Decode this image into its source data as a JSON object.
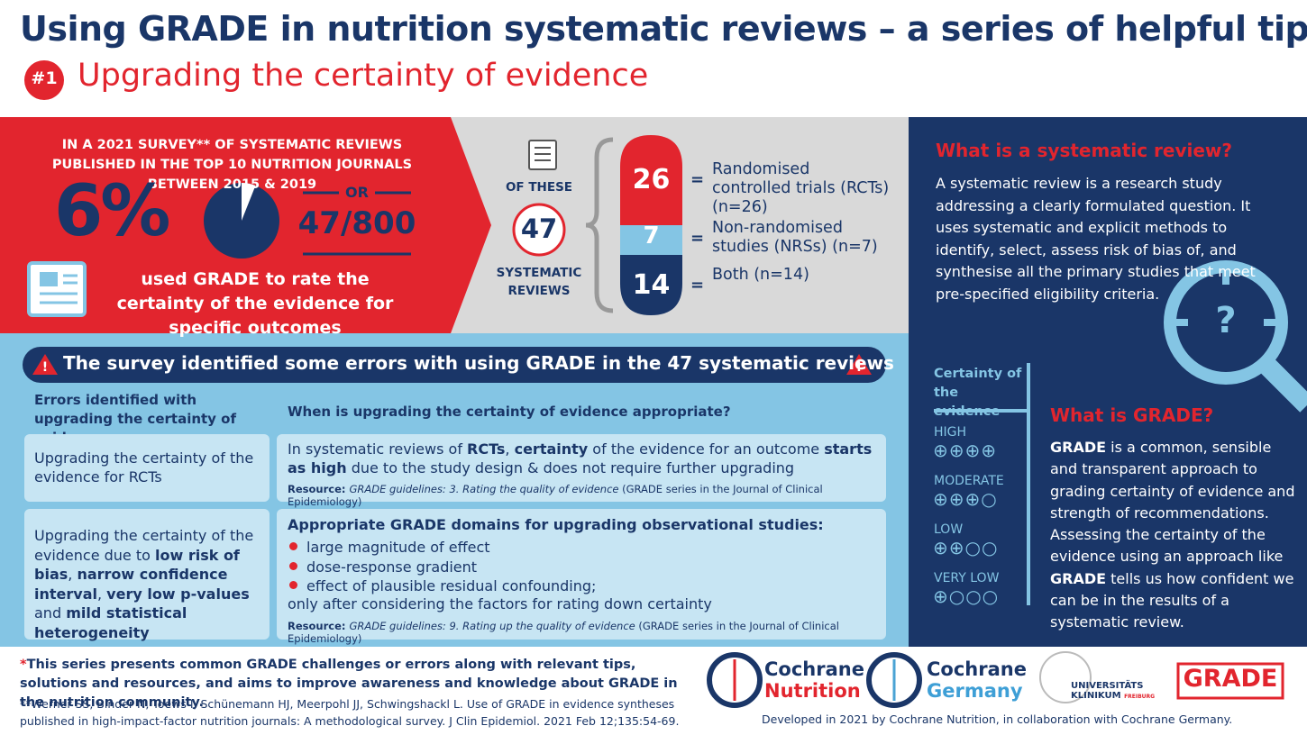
{
  "header": {
    "title": "Using GRADE in nutrition systematic reviews – a series of helpful tips",
    "title_mark": "*",
    "badge": "#1",
    "subtitle": "Upgrading the certainty of evidence"
  },
  "survey": {
    "intro": "IN A 2021 SURVEY** OF SYSTEMATIC REVIEWS PUBLISHED IN THE TOP 10 NUTRITION JOURNALS BETWEEN 2015 & 2019",
    "percent_label": "6%",
    "percent_value": 6,
    "or": "OR",
    "fraction": "47/800",
    "caption": "used GRADE to rate the certainty of the evidence for specific outcomes"
  },
  "breakdown": {
    "of_these": "OF THESE",
    "total": "47",
    "total_label": "SYSTEMATIC REVIEWS",
    "equals": "=",
    "items": [
      {
        "count": "26",
        "label": "Randomised controlled trials (RCTs) (n=26)"
      },
      {
        "count": "7",
        "label": "Non-randomised studies (NRSs) (n=7)"
      },
      {
        "count": "14",
        "label": "Both (n=14)"
      }
    ]
  },
  "sidebar": {
    "sr_title": "What is a systematic review?",
    "sr_text": "A systematic review is a research study addressing a clearly formulated question. It uses systematic and explicit methods to identify, select, assess risk of bias of, and synthesise all the primary studies that meet pre-specified eligibility criteria.",
    "magnifier_symbol": "?",
    "certainty_title": "Certainty of the evidence",
    "levels": [
      {
        "name": "HIGH",
        "symbols": "⊕⊕⊕⊕"
      },
      {
        "name": "MODERATE",
        "symbols": "⊕⊕⊕○"
      },
      {
        "name": "LOW",
        "symbols": "⊕⊕○○"
      },
      {
        "name": "VERY LOW",
        "symbols": "⊕○○○"
      }
    ],
    "grade_title": "What is GRADE?",
    "grade_text": [
      {
        "text": "GRADE",
        "bold": true
      },
      {
        "text": " is a common, sensible and transparent approach to grading certainty of evidence and strength of recommendations. Assessing the certainty of the evidence using an approach like "
      },
      {
        "text": "GRADE",
        "bold": true
      },
      {
        "text": " tells us how confident we can be in the results of a systematic review."
      }
    ]
  },
  "errors": {
    "banner": "The survey identified some errors with using GRADE in the 47 systematic reviews",
    "header_left": "Errors identified with upgrading the certainty of evidence",
    "header_right": "When is upgrading the certainty of evidence appropriate?",
    "rows": [
      {
        "error": [
          {
            "text": "Upgrading the certainty of the evidence for RCTs"
          }
        ],
        "when": [
          {
            "text": "In systematic reviews of "
          },
          {
            "text": "RCTs",
            "bold": true
          },
          {
            "text": ", "
          },
          {
            "text": "certainty",
            "bold": true
          },
          {
            "text": " of the evidence for an outcome "
          },
          {
            "text": "starts as high",
            "bold": true
          },
          {
            "text": " due to the study design & does not require further upgrading"
          }
        ],
        "resource": [
          {
            "text": "Resource: ",
            "bold": true
          },
          {
            "text": "GRADE guidelines: 3. Rating the quality of evidence",
            "italic": true
          },
          {
            "text": " (GRADE series in the Journal of Clinical Epidemiology)"
          }
        ]
      },
      {
        "error": [
          {
            "text": "Upgrading the certainty of the evidence due to "
          },
          {
            "text": "low risk of bias",
            "bold": true
          },
          {
            "text": ", "
          },
          {
            "text": "narrow confidence interval",
            "bold": true
          },
          {
            "text": ", "
          },
          {
            "text": "very low p-values",
            "bold": true
          },
          {
            "text": " and "
          },
          {
            "text": "mild statistical heterogeneity",
            "bold": true
          }
        ],
        "heading": "Appropriate GRADE domains for upgrading observational studies:",
        "bullets": [
          "large magnitude of effect",
          "dose-response gradient",
          "effect of plausible residual confounding;"
        ],
        "note": "only after considering the factors for rating down certainty",
        "resource": [
          {
            "text": "Resource: ",
            "bold": true
          },
          {
            "text": "GRADE guidelines: 9. Rating up the quality of evidence",
            "italic": true
          },
          {
            "text": " (GRADE series in the Journal of Clinical Epidemiology)"
          }
        ]
      }
    ]
  },
  "footer": {
    "note": [
      {
        "text": "*",
        "red": true
      },
      {
        "text": "This series presents common GRADE challenges or errors along with relevant tips, solutions and resources, and aims to improve awareness and knowledge about GRADE in the nutrition community."
      }
    ],
    "reference": "**Werner SS, Binder N, Toews I, Schünemann HJ, Meerpohl JJ, Schwingshackl L. Use of GRADE in evidence syntheses published in high-impact-factor nutrition journals: A methodological survey. J Clin Epidemiol. 2021 Feb 12;135:54-69.",
    "logos": [
      {
        "line1": "Cochrane",
        "line2": "Nutrition"
      },
      {
        "line1": "Cochrane",
        "line2": "Germany"
      },
      {
        "line1": "UNIVERSITÄTS",
        "line2": "KLINIKUM",
        "line3": "FREIBURG"
      },
      {
        "line1": "GRADE"
      }
    ],
    "credit": "Developed in 2021 by Cochrane Nutrition, in collaboration with Cochrane Germany."
  }
}
